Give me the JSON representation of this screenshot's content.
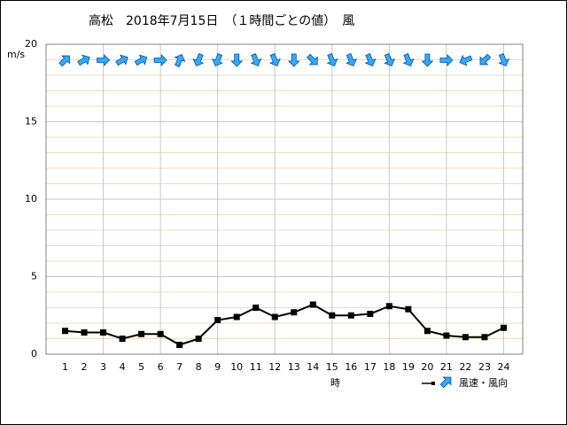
{
  "chart_data": {
    "type": "line",
    "title": "高松　2018年7月15日　（１時間ごとの値）　風",
    "y_label": "m/s",
    "x_label": "時",
    "legend_label": "風速・風向",
    "x": [
      1,
      2,
      3,
      4,
      5,
      6,
      7,
      8,
      9,
      10,
      11,
      12,
      13,
      14,
      15,
      16,
      17,
      18,
      19,
      20,
      21,
      22,
      23,
      24
    ],
    "series": [
      {
        "name": "風速",
        "color": "#000000",
        "values": [
          1.5,
          1.4,
          1.4,
          1.0,
          1.3,
          1.3,
          0.6,
          1.0,
          2.2,
          2.4,
          3.0,
          2.4,
          2.7,
          3.2,
          2.5,
          2.5,
          2.6,
          3.1,
          2.9,
          1.5,
          1.2,
          1.1,
          1.1,
          1.7
        ]
      }
    ],
    "wind_direction": [
      45,
      60,
      90,
      60,
      60,
      90,
      22.5,
      202.5,
      202.5,
      180,
      157.5,
      157.5,
      180,
      135,
      157.5,
      157.5,
      157.5,
      157.5,
      157.5,
      180,
      90,
      247.5,
      225,
      157.5
    ],
    "arrow_color": "#33aaff",
    "xlim": [
      0,
      25
    ],
    "xticks": [
      1,
      2,
      3,
      4,
      5,
      6,
      7,
      8,
      9,
      10,
      11,
      12,
      13,
      14,
      15,
      16,
      17,
      18,
      19,
      20,
      21,
      22,
      23,
      24
    ],
    "ylim": [
      0,
      20
    ],
    "yticks": [
      0,
      5,
      10,
      15,
      20
    ],
    "grid": true
  }
}
